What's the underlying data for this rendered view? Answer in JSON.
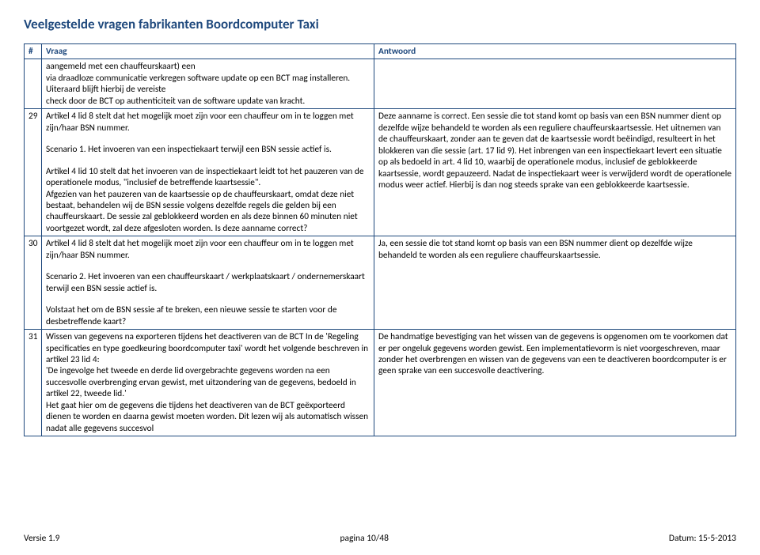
{
  "title": "Veelgestelde vragen fabrikanten Boordcomputer Taxi",
  "headers": {
    "num": "#",
    "vraag": "Vraag",
    "antwoord": "Antwoord"
  },
  "colors": {
    "brand": "#1f497d",
    "text": "#000000",
    "bg": "#ffffff"
  },
  "rows": [
    {
      "num": "",
      "vraag": "aangemeld met een chauffeurskaart) een\nvia draadloze communicatie verkregen software update op een BCT mag installeren. Uiteraard blijft hierbij de vereiste\ncheck door de BCT op authenticiteit van de software update van kracht.",
      "antwoord": ""
    },
    {
      "num": "29",
      "vraag": "Artikel 4 lid 8 stelt dat het mogelijk moet zijn voor een chauffeur om in te loggen met zijn/haar BSN nummer.\n\nScenario 1. Het invoeren van een inspectiekaart terwijl een BSN sessie actief is.\n\nArtikel 4 lid 10 stelt dat het invoeren van de inspectiekaart leidt tot het pauzeren van de operationele modus, \"inclusief de betreffende kaartsessie\".\nAfgezien van het pauzeren van de kaartsessie op de chauffeurskaart, omdat deze niet bestaat, behandelen wij de BSN sessie volgens dezelfde regels die gelden bij een chauffeurskaart. De sessie zal geblokkeerd worden en als deze binnen 60 minuten niet voortgezet wordt, zal deze afgesloten worden. Is deze aanname correct?",
      "antwoord": "Deze aanname is correct. Een sessie die tot stand komt op basis van een BSN nummer dient op dezelfde wijze behandeld te worden als een reguliere chauffeurskaartsessie. Het uitnemen van de chauffeurskaart, zonder aan te geven dat de kaartsessie wordt beëindigd, resulteert in het blokkeren van die sessie (art. 17 lid 9). Het inbrengen van een inspectiekaart levert een situatie op als bedoeld in art. 4 lid 10, waarbij de operationele modus, inclusief de geblokkeerde kaartsessie, wordt gepauzeerd. Nadat de inspectiekaart weer is verwijderd wordt de operationele modus weer actief. Hierbij is dan nog steeds sprake van een geblokkeerde kaartsessie."
    },
    {
      "num": "30",
      "vraag": "Artikel 4 lid 8 stelt dat het mogelijk moet zijn voor een chauffeur om in te loggen met zijn/haar BSN nummer.\n\nScenario 2. Het invoeren van een chauffeurskaart / werkplaatskaart / ondernemerskaart terwijl een BSN sessie actief is.\n\nVolstaat het om de BSN sessie af te breken, een nieuwe sessie te starten voor de desbetreffende kaart?",
      "antwoord": "Ja, een sessie die tot stand komt op basis van een BSN nummer dient op dezelfde wijze behandeld te worden als een reguliere chauffeurskaartsessie."
    },
    {
      "num": "31",
      "vraag": "Wissen van gegevens na exporteren tijdens het deactiveren van de BCT In de 'Regeling specificaties en type goedkeuring boordcomputer taxi' wordt het volgende beschreven in artikel 23 lid 4:\n'De ingevolge het tweede en derde lid overgebrachte gegevens worden na een succesvolle overbrenging ervan gewist, met uitzondering van de gegevens, bedoeld in artikel 22, tweede lid.'\nHet gaat hier om de gegevens die tijdens het deactiveren van de BCT geëxporteerd dienen te worden en daarna gewist moeten worden. Dit lezen wij als automatisch wissen nadat alle gegevens succesvol",
      "antwoord": "De handmatige bevestiging van het wissen van de gegevens is opgenomen om te voorkomen dat er per ongeluk gegevens worden gewist. Een implementatievorm is niet voorgeschreven, maar zonder het overbrengen en wissen van de gegevens van een te deactiveren boordcomputer is er geen sprake van een succesvolle deactivering."
    }
  ],
  "footer": {
    "version": "Versie 1.9",
    "page": "pagina 10/48",
    "date": "Datum: 15-5-2013"
  }
}
